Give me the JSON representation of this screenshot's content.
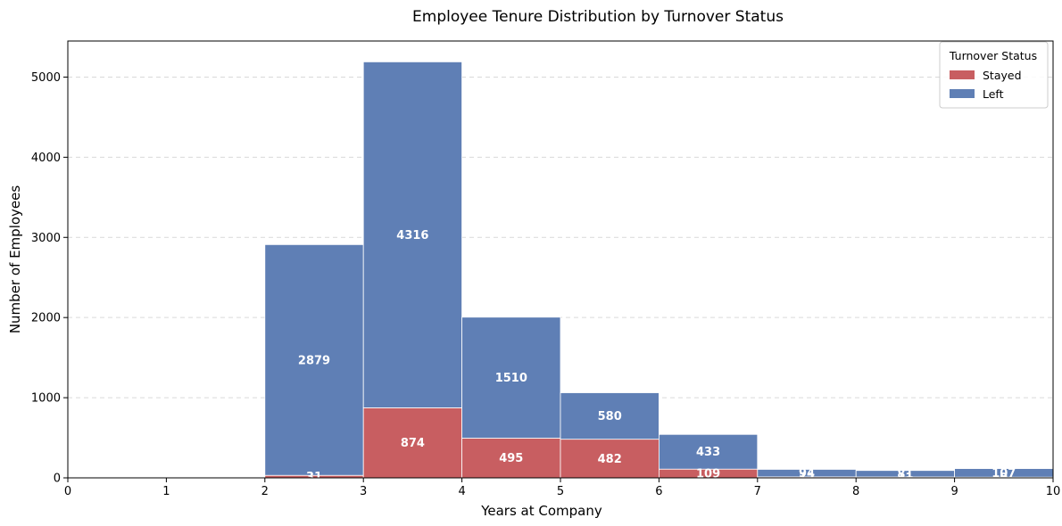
{
  "chart_data": {
    "type": "bar",
    "stacked": true,
    "title": "Employee Tenure Distribution by Turnover Status",
    "xlabel": "Years at Company",
    "ylabel": "Number of Employees",
    "xlim": [
      0,
      10
    ],
    "ylim": [
      0,
      5450
    ],
    "xticks": [
      0,
      1,
      2,
      3,
      4,
      5,
      6,
      7,
      8,
      9,
      10
    ],
    "yticks": [
      0,
      1000,
      2000,
      3000,
      4000,
      5000
    ],
    "grid": "y-dashed",
    "bins": [
      [
        2,
        3
      ],
      [
        3,
        4
      ],
      [
        4,
        5
      ],
      [
        5,
        6
      ],
      [
        6,
        7
      ],
      [
        7,
        8
      ],
      [
        8,
        9
      ],
      [
        9,
        10
      ]
    ],
    "series": [
      {
        "name": "Stayed",
        "color": "#c85e61",
        "values": [
          31,
          874,
          495,
          482,
          109,
          12,
          11,
          9
        ]
      },
      {
        "name": "Left",
        "color": "#5f7fb5",
        "values": [
          2879,
          4316,
          1510,
          580,
          433,
          94,
          81,
          107
        ]
      }
    ],
    "legend": {
      "title": "Turnover Status",
      "placement": "upper-right"
    }
  }
}
